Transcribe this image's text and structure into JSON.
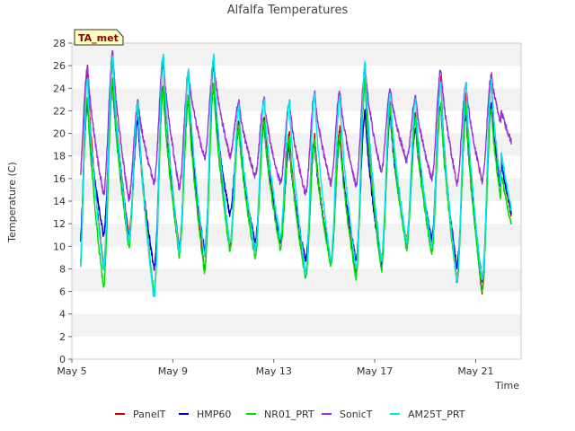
{
  "chart_data": {
    "type": "line",
    "title": "Alfalfa Temperatures",
    "badge": "TA_met",
    "xlabel": "Time",
    "ylabel": "Temperature (C)",
    "xlim": [
      0,
      17.8
    ],
    "ylim": [
      0,
      28
    ],
    "y_ticks": [
      0,
      2,
      4,
      6,
      8,
      10,
      12,
      14,
      16,
      18,
      20,
      22,
      24,
      26,
      28
    ],
    "x_ticks": [
      {
        "value": 0,
        "label": "May 5"
      },
      {
        "value": 4,
        "label": "May 9"
      },
      {
        "value": 8,
        "label": "May 13"
      },
      {
        "value": 12,
        "label": "May 17"
      },
      {
        "value": 16,
        "label": "May 21"
      }
    ],
    "grid": "horizontal bands",
    "legend_position": "bottom",
    "daily_extremes": {
      "days": [
        "May 5",
        "May 6",
        "May 7",
        "May 8",
        "May 9",
        "May 10",
        "May 11",
        "May 12",
        "May 13",
        "May 14",
        "May 15",
        "May 16",
        "May 17",
        "May 18",
        "May 19",
        "May 20",
        "May 21",
        "May 22"
      ],
      "note": "estimated daily min (around 06:00) and max (around 15:00) per series"
    },
    "series": [
      {
        "name": "PanelT",
        "color": "#d00000",
        "start": 8.6,
        "mins": [
          4.9,
          8.2,
          11.0,
          5.6,
          9.8,
          8.0,
          10.0,
          9.8,
          10.5,
          7.4,
          8.6,
          7.6,
          8.2,
          10.4,
          10.3,
          6.9,
          5.9,
          11.2
        ],
        "maxs": [
          25.8,
          26.6,
          22.4,
          26.6,
          25.4,
          26.2,
          21.0,
          21.4,
          20.0,
          19.8,
          20.4,
          24.6,
          22.6,
          21.8,
          24.8,
          23.6,
          24.6
        ],
        "end": 12.6
      },
      {
        "name": "HMP60",
        "color": "#0000cc",
        "start": 8.3,
        "mins": [
          8.2,
          11.0,
          10.8,
          8.0,
          9.8,
          9.6,
          12.8,
          10.4,
          10.5,
          8.8,
          8.6,
          8.8,
          8.4,
          10.4,
          10.7,
          8.2,
          7.0,
          12.0
        ],
        "maxs": [
          22.4,
          24.4,
          21.2,
          24.2,
          23.0,
          24.2,
          20.4,
          20.8,
          18.8,
          19.2,
          19.6,
          22.0,
          21.6,
          20.6,
          22.6,
          21.8,
          22.6
        ],
        "end": 13.0
      },
      {
        "name": "NR01_PRT",
        "color": "#00dd00",
        "start": 6.8,
        "mins": [
          5.4,
          6.4,
          10.0,
          5.8,
          9.2,
          7.8,
          9.6,
          9.0,
          9.8,
          7.2,
          8.4,
          7.2,
          7.8,
          9.8,
          9.4,
          7.0,
          6.2,
          10.6
        ],
        "maxs": [
          23.2,
          25.0,
          23.0,
          24.2,
          23.2,
          24.4,
          20.6,
          21.0,
          19.6,
          19.4,
          19.8,
          24.8,
          22.4,
          21.2,
          22.6,
          22.4,
          22.2
        ],
        "end": 11.8
      },
      {
        "name": "SonicT",
        "color": "#9b30d9",
        "start": 14.7,
        "mins": [
          14.6,
          14.6,
          14.2,
          15.6,
          15.2,
          17.8,
          18.0,
          16.2,
          15.6,
          14.6,
          15.6,
          15.4,
          16.6,
          17.6,
          16.0,
          15.6,
          15.8,
          19.0
        ],
        "maxs": [
          26.0,
          27.2,
          22.8,
          26.8,
          25.4,
          26.4,
          22.8,
          23.0,
          22.8,
          23.6,
          23.8,
          25.8,
          24.0,
          23.2,
          25.8,
          24.4,
          25.2
        ],
        "end": 19.2
      },
      {
        "name": "AM25T_PRT",
        "color": "#00e8ee",
        "start": 6.0,
        "mins": [
          5.2,
          8.0,
          10.6,
          5.4,
          9.6,
          9.0,
          10.2,
          9.6,
          10.8,
          7.6,
          8.8,
          8.0,
          8.8,
          10.4,
          10.0,
          7.0,
          6.8,
          11.4
        ],
        "maxs": [
          25.0,
          26.8,
          22.6,
          27.2,
          25.6,
          26.8,
          22.4,
          23.0,
          22.8,
          23.6,
          23.4,
          26.4,
          23.6,
          23.0,
          24.6,
          24.6,
          24.6
        ],
        "end": 13.2
      }
    ]
  }
}
